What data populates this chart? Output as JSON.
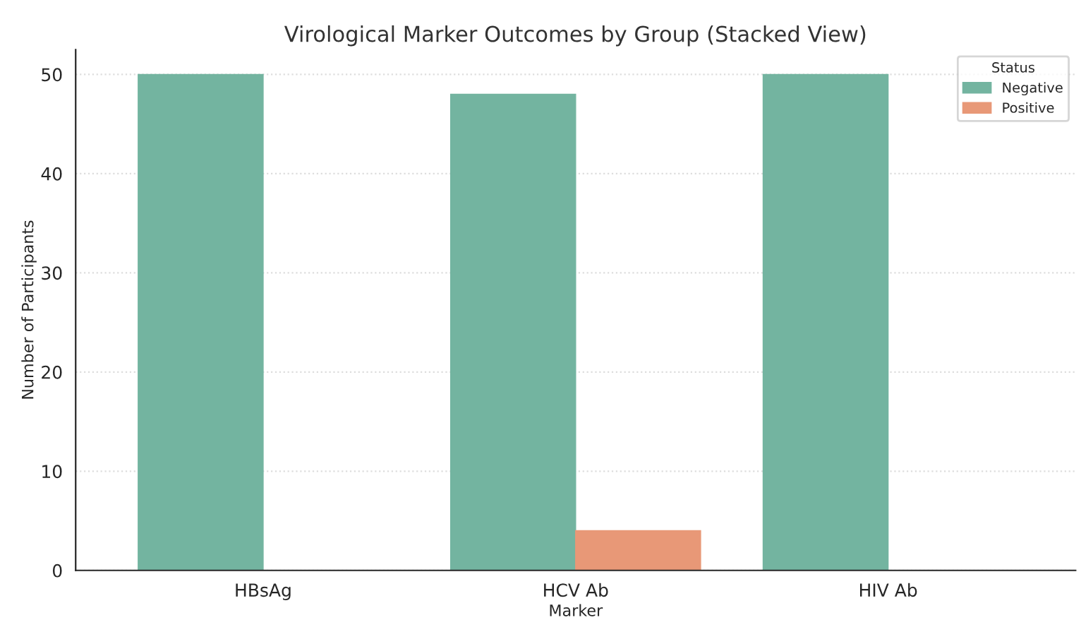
{
  "chart_data": {
    "type": "bar",
    "title": "Virological Marker Outcomes by Group (Stacked View)",
    "xlabel": "Marker",
    "ylabel": "Number of Participants",
    "legend_title": "Status",
    "categories": [
      "HBsAg",
      "HCV Ab",
      "HIV Ab"
    ],
    "series": [
      {
        "name": "Negative",
        "color": "#73b4a0",
        "values": [
          50,
          48,
          50
        ]
      },
      {
        "name": "Positive",
        "color": "#e89877",
        "values": [
          0,
          4,
          0
        ]
      }
    ],
    "ylim": [
      0,
      52.5
    ],
    "yticks": [
      0,
      10,
      20,
      30,
      40,
      50
    ],
    "grid": "y",
    "legend": "top right"
  }
}
